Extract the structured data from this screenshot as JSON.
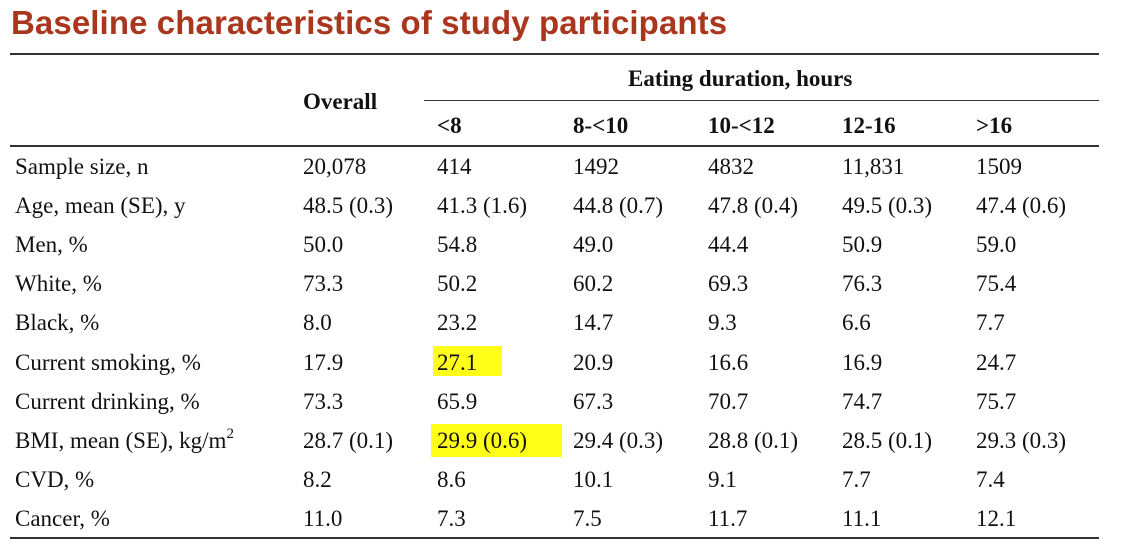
{
  "title": "Baseline characteristics of study participants",
  "table": {
    "group_header": "Eating duration, hours",
    "overall_header": "Overall",
    "columns": [
      "<8",
      "8-<10",
      "10-<12",
      "12-16",
      ">16"
    ],
    "rows": [
      {
        "label": "Sample size, n",
        "values": [
          "20,078",
          "414",
          "1492",
          "4832",
          "11,831",
          "1509"
        ]
      },
      {
        "label": "Age, mean (SE), y",
        "values": [
          "48.5 (0.3)",
          "41.3 (1.6)",
          "44.8 (0.7)",
          "47.8 (0.4)",
          "49.5 (0.3)",
          "47.4 (0.6)"
        ]
      },
      {
        "label": "Men, %",
        "values": [
          "50.0",
          "54.8",
          "49.0",
          "44.4",
          "50.9",
          "59.0"
        ]
      },
      {
        "label": "White, %",
        "values": [
          "73.3",
          "50.2",
          "60.2",
          "69.3",
          "76.3",
          "75.4"
        ]
      },
      {
        "label": "Black, %",
        "values": [
          "8.0",
          "23.2",
          "14.7",
          "9.3",
          "6.6",
          "7.7"
        ]
      },
      {
        "label": "Current smoking, %",
        "values": [
          "17.9",
          "27.1",
          "20.9",
          "16.6",
          "16.9",
          "24.7"
        ]
      },
      {
        "label": "Current drinking, %",
        "values": [
          "73.3",
          "65.9",
          "67.3",
          "70.7",
          "74.7",
          "75.7"
        ]
      },
      {
        "label": "BMI, mean (SE), kg/m",
        "label_sup": "2",
        "values": [
          "28.7 (0.1)",
          "29.9 (0.6)",
          "29.4 (0.3)",
          "28.8 (0.1)",
          "28.5 (0.1)",
          "29.3 (0.3)"
        ]
      },
      {
        "label": "CVD, %",
        "values": [
          "8.2",
          "8.6",
          "10.1",
          "9.1",
          "7.7",
          "7.4"
        ]
      },
      {
        "label": "Cancer, %",
        "values": [
          "11.0",
          "7.3",
          "7.5",
          "11.7",
          "11.1",
          "12.1"
        ]
      }
    ],
    "highlight_color": "#ffff1a"
  }
}
